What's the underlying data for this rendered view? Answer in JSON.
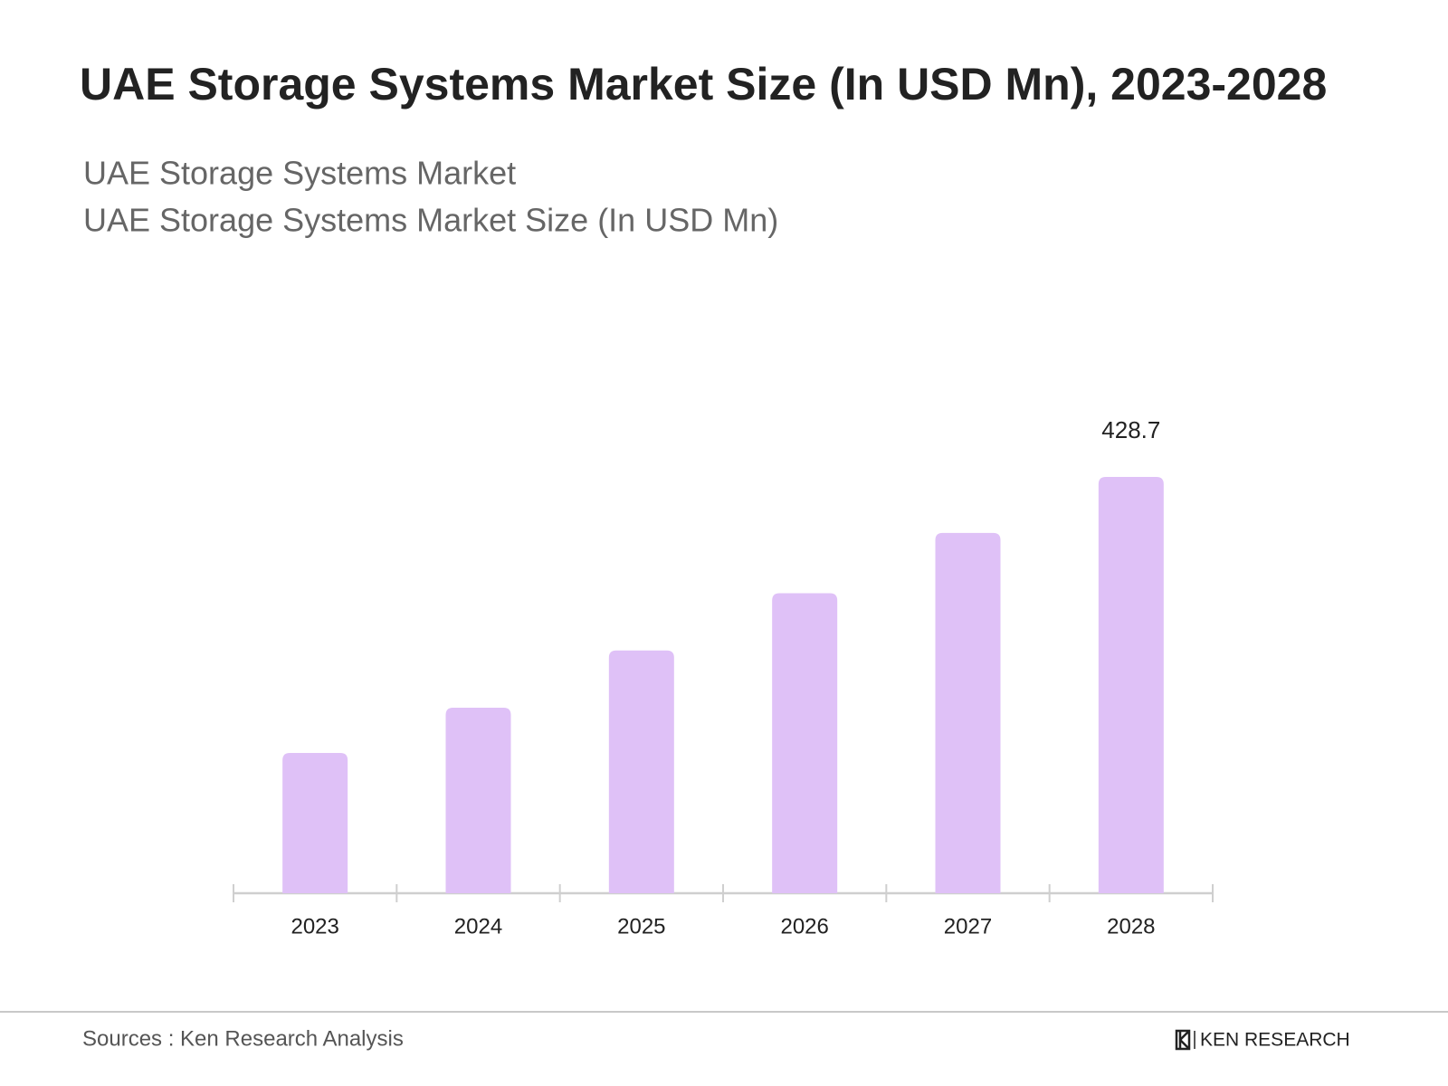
{
  "chart_data": {
    "type": "bar",
    "title": "UAE Storage Systems Market Size (In USD Mn), 2023-2028",
    "subtitle": [
      "UAE Storage Systems Market",
      "UAE Storage Systems Market Size (In USD Mn)"
    ],
    "categories": [
      "2023",
      "2024",
      "2025",
      "2026",
      "2027",
      "2028"
    ],
    "values": [
      144.5,
      191,
      250,
      309,
      371,
      428.7
    ],
    "value_labels": [
      null,
      null,
      null,
      null,
      null,
      "428.7"
    ],
    "color": "#dfc1f7"
  },
  "footer": {
    "source": "Sources : Ken Research Analysis",
    "brand": "KEN RESEARCH"
  }
}
